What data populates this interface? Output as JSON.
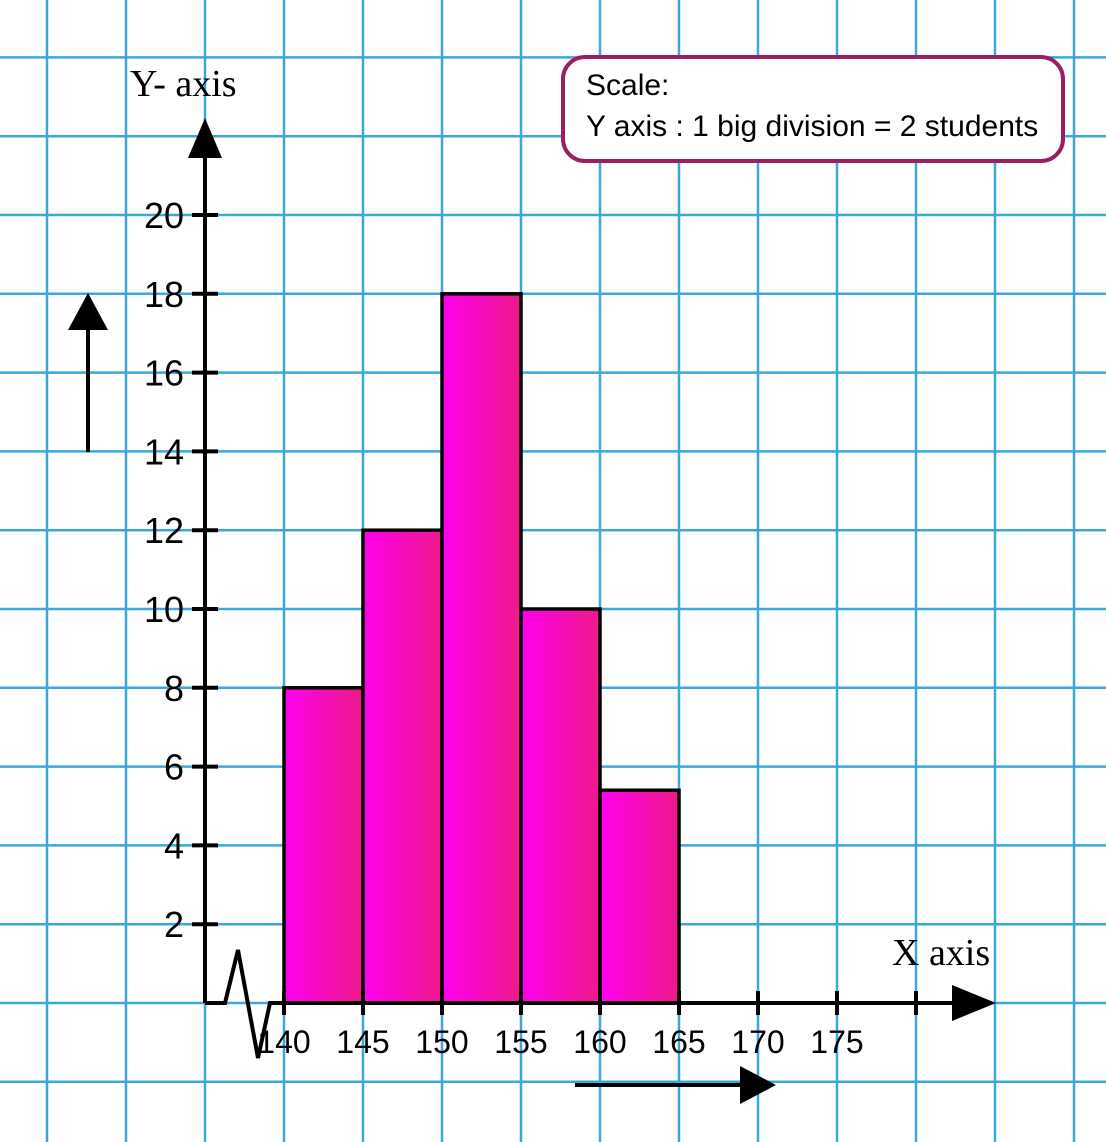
{
  "chart_data": {
    "type": "bar",
    "subtype": "histogram",
    "title": "",
    "xlabel": "X axis",
    "ylabel": "Y- axis",
    "bins": [
      {
        "start": 140,
        "end": 145,
        "value": 8
      },
      {
        "start": 145,
        "end": 150,
        "value": 12
      },
      {
        "start": 150,
        "end": 155,
        "value": 18
      },
      {
        "start": 155,
        "end": 160,
        "value": 10
      },
      {
        "start": 160,
        "end": 165,
        "value": 5.4
      }
    ],
    "x_ticks": [
      "140",
      "145",
      "150",
      "155",
      "160",
      "165",
      "170",
      "175"
    ],
    "y_ticks": [
      "2",
      "4",
      "6",
      "8",
      "10",
      "12",
      "14",
      "16",
      "18",
      "20"
    ],
    "xlim": [
      140,
      180
    ],
    "ylim": [
      0,
      20
    ],
    "x_axis_break": true,
    "grid": true,
    "colors": {
      "bar_light": "#ff00ee",
      "bar_dark": "#ee1a8a",
      "grid": "#3aa8dc",
      "scale_border": "#9b1d62"
    },
    "scale_box": {
      "line1": "Scale:",
      "line2": "Y axis : 1 big division = 2 students"
    }
  }
}
